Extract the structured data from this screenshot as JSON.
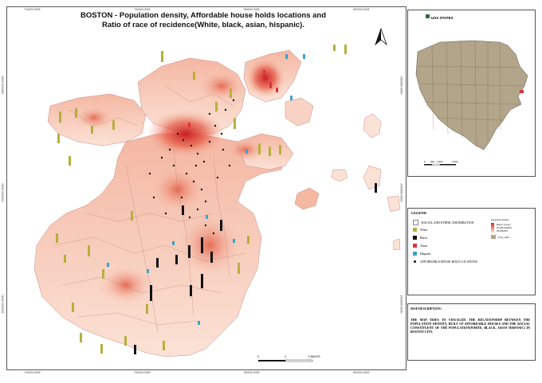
{
  "map": {
    "title": "BOSTON - Population density, Affordable house holds locations and Ratio of race of recidence(White, black, asian, hispanic).",
    "north_label": "N",
    "scale_bar": {
      "labels": [
        "0",
        "1",
        "2 MILES"
      ]
    },
    "coords_top": [
      "740000.000E",
      "760000.000E",
      "780000.000E",
      "800000.000E"
    ],
    "coords_bottom": [
      "740000.000E",
      "760000.000E",
      "780000.000E",
      "800000.000E"
    ],
    "coords_left": [
      "2960000.000N",
      "2940000.000N",
      "2920000.000N"
    ],
    "coords_right": [
      "2960000.000N",
      "2940000.000N",
      "2920000.000N"
    ],
    "colors": {
      "density_low": "#fbe3d8",
      "density_high": "#d7261e",
      "white": "#b5b03b",
      "black": "#111111",
      "asian": "#d8343c",
      "hispanic": "#3ea0c8",
      "usa": "#b3a58a"
    }
  },
  "inset": {
    "title": "USA STATES",
    "scale_labels": [
      "0",
      "500",
      "1,000",
      "2,000"
    ]
  },
  "legend": {
    "title": "LEGEND",
    "heading": "RACIAL AND ETHNIC DISTRIBUTION",
    "items": [
      {
        "label": "White",
        "color": "#b5b03b"
      },
      {
        "label": "Black",
        "color": "#111111"
      },
      {
        "label": "Asian",
        "color": "#d8343c"
      },
      {
        "label": "Hispanic",
        "color": "#3ea0c8"
      }
    ],
    "points_label": "AFFORDABLE HOUSE HOLD LOCATIONS",
    "density": {
      "title": "Population density",
      "band": "Band 1 (Gray)",
      "high": "97,468.3439811",
      "low": "49.3892561"
    },
    "usa_label": "USA_adm1"
  },
  "description": {
    "title": "MAP DESCRIPTION:",
    "text": "THE MAP TRIES TO VISUALIZE THE RELATIONSHIP BETWEEN THE POPULATION DENSITY, BUILT UP AFFORDABLE HOUSES AND THE RACIAL CONSTITUENT OF THE POPULATION(WHITE, BLACK, ASIAN HISPANIC) IN BOSTON CITY."
  }
}
